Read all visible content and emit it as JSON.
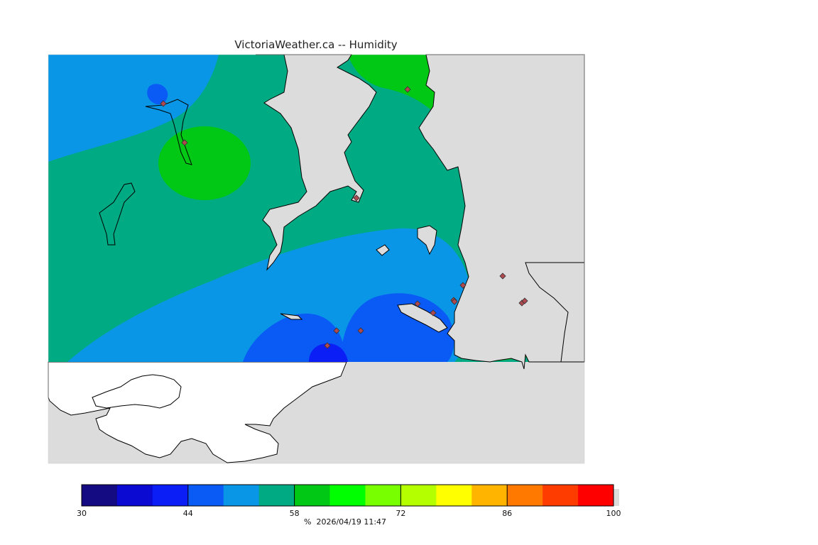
{
  "title": "VictoriaWeather.ca -- Humidity",
  "colorbar": {
    "colors": [
      "#140a82",
      "#0a0ad2",
      "#0a1ef5",
      "#0a5af5",
      "#0a96e6",
      "#00aa82",
      "#00c814",
      "#00ff00",
      "#78ff00",
      "#b4ff00",
      "#ffff00",
      "#ffb400",
      "#ff7800",
      "#ff3c00",
      "#ff0000"
    ],
    "tick_values": [
      "30",
      "44",
      "58",
      "72",
      "86",
      "100"
    ],
    "caption": "%  2026/04/19 11:47"
  },
  "map_colors": {
    "land": "#dcdcdc",
    "water": "#ffffff",
    "outline": "#000000",
    "station": "#b04850"
  }
}
